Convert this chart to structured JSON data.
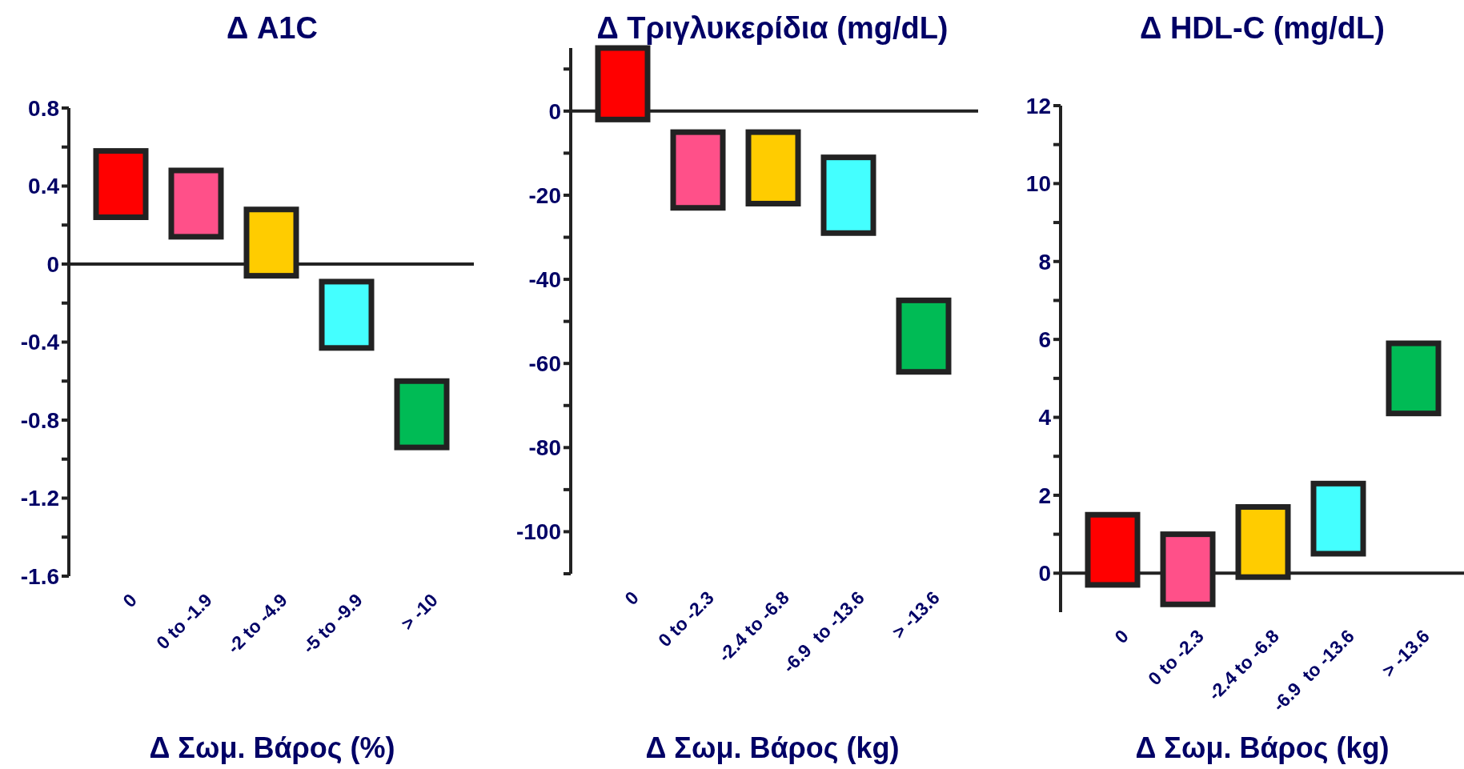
{
  "chart_data": [
    {
      "type": "bar",
      "title": "Δ A1C",
      "xlabel": "Δ Σωμ. Βάρος (%)",
      "categories": [
        "0",
        "0 to -1.9",
        "-2 to -4.9",
        "-5 to -9.9",
        "> -10"
      ],
      "base": [
        0.24,
        0.14,
        -0.06,
        -0.43,
        -0.94
      ],
      "values": [
        0.34,
        0.34,
        0.34,
        0.34,
        0.34
      ],
      "colors": [
        "#ff0000",
        "#ff5089",
        "#ffcc00",
        "#44ffff",
        "#00bb55"
      ],
      "ylim": [
        -1.6,
        0.8
      ],
      "yticks": [
        0.8,
        {
          "value": 0.6,
          "label": null
        },
        0.4,
        {
          "value": 0.2,
          "label": null
        },
        0,
        {
          "value": -0.2,
          "label": null
        },
        -0.4,
        {
          "value": -0.6,
          "label": null
        },
        -0.8,
        {
          "value": -1.0,
          "label": null
        },
        -1.2,
        {
          "value": -1.4,
          "label": null
        },
        -1.6
      ]
    },
    {
      "type": "bar",
      "title": "Δ Τριγλυκερίδια (mg/dL)",
      "xlabel": "Δ Σωμ. Βάρος (kg)",
      "categories": [
        "0",
        "0 to -2.3",
        "-2.4 to -6.8",
        "-6.9  to -13.6",
        "> -13.6"
      ],
      "base": [
        -2,
        -23,
        -22,
        -29,
        -62
      ],
      "values": [
        17,
        18,
        17,
        18,
        17
      ],
      "colors": [
        "#ff0000",
        "#ff5089",
        "#ffcc00",
        "#44ffff",
        "#00bb55"
      ],
      "ylim": [
        -110,
        15
      ],
      "yticks": [
        {
          "value": 10,
          "label": null
        },
        0,
        {
          "value": -10,
          "label": null
        },
        -20,
        {
          "value": -30,
          "label": null
        },
        -40,
        {
          "value": -50,
          "label": null
        },
        -60,
        {
          "value": -70,
          "label": null
        },
        -80,
        {
          "value": -90,
          "label": null
        },
        -100,
        {
          "value": -110,
          "label": null
        }
      ]
    },
    {
      "type": "bar",
      "title": "Δ HDL-C (mg/dL)",
      "xlabel": "Δ Σωμ. Βάρος (kg)",
      "categories": [
        "0",
        "0 to -2.3",
        "-2.4 to -6.8",
        "-6.9  to -13.6",
        "> -13.6"
      ],
      "base": [
        -0.3,
        -0.8,
        -0.1,
        0.5,
        4.1
      ],
      "values": [
        1.8,
        1.8,
        1.8,
        1.8,
        1.8
      ],
      "colors": [
        "#ff0000",
        "#ff5089",
        "#ffcc00",
        "#44ffff",
        "#00bb55"
      ],
      "ylim": [
        -1,
        12
      ],
      "yticks": [
        12,
        {
          "value": 11,
          "label": null
        },
        10,
        {
          "value": 9,
          "label": null
        },
        8,
        {
          "value": 7,
          "label": null
        },
        6,
        {
          "value": 5,
          "label": null
        },
        4,
        {
          "value": 3,
          "label": null
        },
        2,
        {
          "value": 1,
          "label": null
        },
        0
      ]
    }
  ]
}
